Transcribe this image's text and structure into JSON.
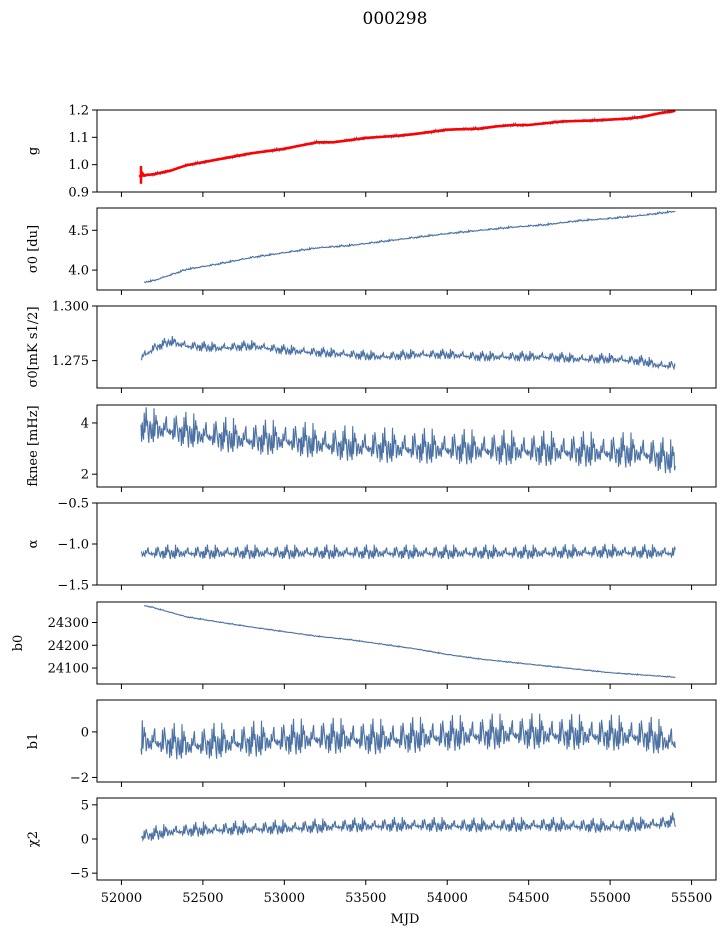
{
  "figure": {
    "title": "000298",
    "xlabel": "MJD",
    "xlim": [
      51850,
      55650
    ],
    "xticks": [
      52000,
      52500,
      53000,
      53500,
      54000,
      54500,
      55000,
      55500
    ],
    "line_color": "#4c72a4",
    "highlight_color": "#ff0000"
  },
  "chart_data": [
    {
      "type": "line",
      "ylabel": "g",
      "ylim": [
        0.9,
        1.2
      ],
      "yticks": [
        0.9,
        1.0,
        1.1,
        1.2
      ],
      "ytick_labels": [
        "0.9",
        "1.0",
        "1.1",
        "1.2"
      ],
      "series": [
        {
          "x": [
            52110,
            52150,
            52200,
            52300,
            52400,
            52600,
            52800,
            53000,
            53100,
            53200,
            53300,
            53500,
            53700,
            53800,
            54000,
            54200,
            54300,
            54400,
            54500,
            54700,
            54900,
            55000,
            55100,
            55200,
            55300,
            55400
          ],
          "y": [
            0.955,
            0.962,
            0.965,
            0.978,
            0.998,
            1.02,
            1.042,
            1.058,
            1.07,
            1.082,
            1.082,
            1.098,
            1.106,
            1.112,
            1.128,
            1.132,
            1.14,
            1.145,
            1.145,
            1.158,
            1.162,
            1.165,
            1.168,
            1.175,
            1.188,
            1.197
          ],
          "noise": 0.003
        }
      ],
      "highlight": {
        "x": [
          52110,
          52120,
          52130,
          52140,
          52150,
          52200,
          52300,
          52400,
          52600,
          52800,
          53000,
          53100,
          53200,
          53300,
          53500,
          53700,
          53800,
          54000,
          54200,
          54300,
          54400,
          54500,
          54700,
          54900,
          55000,
          55100,
          55200,
          55300,
          55400
        ],
        "y": [
          0.962,
          0.955,
          0.968,
          0.96,
          0.962,
          0.965,
          0.978,
          0.998,
          1.02,
          1.042,
          1.058,
          1.07,
          1.082,
          1.082,
          1.098,
          1.106,
          1.112,
          1.128,
          1.132,
          1.14,
          1.145,
          1.145,
          1.158,
          1.162,
          1.165,
          1.168,
          1.175,
          1.188,
          1.197
        ],
        "err_x": 52120,
        "err_ylim": [
          0.93,
          0.995
        ]
      }
    },
    {
      "type": "line",
      "ylabel": "σ0 [du]",
      "ylim": [
        3.75,
        4.78
      ],
      "yticks": [
        4.0,
        4.5
      ],
      "ytick_labels": [
        "4.0",
        "4.5"
      ],
      "series": [
        {
          "x": [
            52140,
            52200,
            52300,
            52400,
            52600,
            52800,
            53000,
            53200,
            53400,
            53600,
            53800,
            54000,
            54200,
            54400,
            54600,
            54800,
            55000,
            55200,
            55400
          ],
          "y": [
            3.85,
            3.87,
            3.94,
            4.01,
            4.08,
            4.16,
            4.22,
            4.28,
            4.31,
            4.36,
            4.41,
            4.46,
            4.5,
            4.54,
            4.57,
            4.62,
            4.65,
            4.69,
            4.74
          ],
          "noise": 0.006
        }
      ]
    },
    {
      "type": "line",
      "ylabel": "σ0[mK s1/2]",
      "ylim": [
        1.2625,
        1.3
      ],
      "yticks": [
        1.275,
        1.3
      ],
      "ytick_labels": [
        "1.275",
        "1.300"
      ],
      "series": [
        {
          "x": [
            52120,
            52200,
            52300,
            52400,
            52600,
            52800,
            53000,
            53200,
            53400,
            53600,
            53800,
            54000,
            54200,
            54400,
            54600,
            54800,
            55000,
            55200,
            55300,
            55400
          ],
          "y": [
            1.2765,
            1.281,
            1.284,
            1.282,
            1.281,
            1.282,
            1.28,
            1.279,
            1.278,
            1.277,
            1.278,
            1.278,
            1.277,
            1.277,
            1.277,
            1.276,
            1.276,
            1.275,
            1.273,
            1.273
          ],
          "noise": 0.0012
        }
      ]
    },
    {
      "type": "line",
      "ylabel": "fknee [mHz]",
      "ylim": [
        1.5,
        4.7
      ],
      "yticks": [
        2,
        4
      ],
      "ytick_labels": [
        "2",
        "4"
      ],
      "series": [
        {
          "x": [
            52120,
            52300,
            52500,
            52800,
            53000,
            53300,
            53600,
            54000,
            54400,
            54800,
            55200,
            55400
          ],
          "y": [
            3.9,
            3.8,
            3.6,
            3.4,
            3.4,
            3.2,
            3.1,
            3.05,
            3.0,
            2.95,
            2.9,
            2.6
          ],
          "noise": 0.35
        }
      ]
    },
    {
      "type": "line",
      "ylabel": "α",
      "ylim": [
        -1.5,
        -0.5
      ],
      "yticks": [
        -1.5,
        -1.0,
        -0.5
      ],
      "ytick_labels": [
        "−1.5",
        "−1.0",
        "−0.5"
      ],
      "series": [
        {
          "x": [
            52120,
            52500,
            53000,
            53500,
            54000,
            54500,
            55000,
            55400
          ],
          "y": [
            -1.1,
            -1.1,
            -1.1,
            -1.1,
            -1.1,
            -1.1,
            -1.09,
            -1.1
          ],
          "noise": 0.045
        }
      ]
    },
    {
      "type": "line",
      "ylabel": "b0",
      "ylim": [
        24030,
        24390
      ],
      "yticks": [
        24100,
        24200,
        24300
      ],
      "ytick_labels": [
        "24100",
        "24200",
        "24300"
      ],
      "series": [
        {
          "x": [
            52140,
            52200,
            52400,
            52600,
            52800,
            53000,
            53200,
            53400,
            53600,
            53800,
            54000,
            54200,
            54400,
            54600,
            54800,
            55000,
            55200,
            55400
          ],
          "y": [
            24375,
            24365,
            24325,
            24302,
            24280,
            24260,
            24240,
            24225,
            24205,
            24185,
            24160,
            24140,
            24125,
            24110,
            24095,
            24080,
            24070,
            24060
          ],
          "noise": 1.2
        }
      ]
    },
    {
      "type": "line",
      "ylabel": "b1",
      "ylim": [
        -2.2,
        1.4
      ],
      "yticks": [
        -2,
        0
      ],
      "ytick_labels": [
        "−2",
        "0"
      ],
      "series": [
        {
          "x": [
            52120,
            52400,
            52800,
            53200,
            53600,
            54000,
            54400,
            54800,
            55200,
            55400
          ],
          "y": [
            -0.3,
            -0.5,
            -0.35,
            -0.2,
            -0.25,
            -0.1,
            0.0,
            -0.05,
            -0.1,
            -0.4
          ],
          "noise": 0.4
        }
      ]
    },
    {
      "type": "line",
      "ylabel": "χ2",
      "ylim": [
        -6,
        6
      ],
      "yticks": [
        -5,
        0,
        5
      ],
      "ytick_labels": [
        "−5",
        "0",
        "5"
      ],
      "series": [
        {
          "x": [
            52120,
            52300,
            52600,
            53000,
            53400,
            53800,
            54200,
            54600,
            55000,
            55300,
            55400
          ],
          "y": [
            0.5,
            1.2,
            1.5,
            1.7,
            2.0,
            2.1,
            2.0,
            2.1,
            1.9,
            2.3,
            2.8
          ],
          "noise": 0.55
        }
      ]
    }
  ]
}
